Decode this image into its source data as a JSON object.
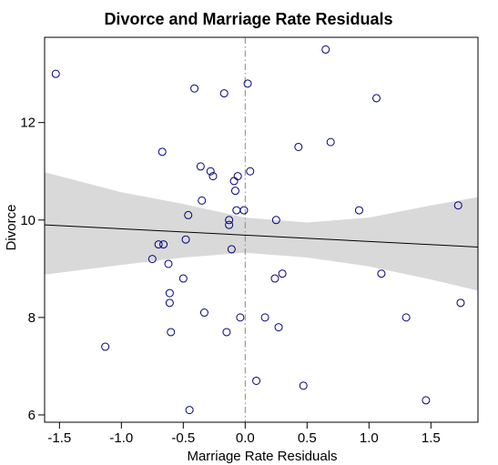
{
  "chart_data": {
    "type": "scatter",
    "title": "Divorce and Marriage Rate Residuals",
    "xlabel": "Marriage Rate Residuals",
    "ylabel": "Divorce",
    "xlim": [
      -1.62,
      1.88
    ],
    "ylim": [
      5.85,
      13.75
    ],
    "x_ticks": [
      -1.5,
      -1.0,
      -0.5,
      0.0,
      0.5,
      1.0,
      1.5
    ],
    "x_tick_labels": [
      "-1.5",
      "-1.0",
      "-0.5",
      "0.0",
      "0.5",
      "1.0",
      "1.5"
    ],
    "y_ticks": [
      6,
      8,
      10,
      12
    ],
    "y_tick_labels": [
      "6",
      "8",
      "10",
      "12"
    ],
    "grid": false,
    "reference_line": {
      "x": 0,
      "style": "dash-dot"
    },
    "regression_line": {
      "intercept": 9.69,
      "slope": -0.13
    },
    "confidence_band": {
      "x": [
        -1.62,
        -1.0,
        -0.5,
        0.0,
        0.5,
        1.0,
        1.5,
        1.88
      ],
      "lower": [
        8.88,
        9.08,
        9.23,
        9.33,
        9.23,
        9.05,
        8.78,
        8.55
      ],
      "upper": [
        10.98,
        10.57,
        10.33,
        10.05,
        9.95,
        10.05,
        10.3,
        10.47
      ]
    },
    "points": [
      {
        "x": -1.53,
        "y": 13.0
      },
      {
        "x": -1.13,
        "y": 7.4
      },
      {
        "x": -0.75,
        "y": 9.2
      },
      {
        "x": -0.7,
        "y": 9.5
      },
      {
        "x": -0.67,
        "y": 11.4
      },
      {
        "x": -0.66,
        "y": 9.5
      },
      {
        "x": -0.62,
        "y": 9.1
      },
      {
        "x": -0.61,
        "y": 8.5
      },
      {
        "x": -0.61,
        "y": 8.3
      },
      {
        "x": -0.6,
        "y": 7.7
      },
      {
        "x": -0.5,
        "y": 8.8
      },
      {
        "x": -0.48,
        "y": 9.6
      },
      {
        "x": -0.46,
        "y": 10.1
      },
      {
        "x": -0.45,
        "y": 6.1
      },
      {
        "x": -0.41,
        "y": 12.7
      },
      {
        "x": -0.36,
        "y": 11.1
      },
      {
        "x": -0.35,
        "y": 10.4
      },
      {
        "x": -0.33,
        "y": 8.1
      },
      {
        "x": -0.28,
        "y": 11.0
      },
      {
        "x": -0.26,
        "y": 10.9
      },
      {
        "x": -0.17,
        "y": 12.6
      },
      {
        "x": -0.15,
        "y": 7.7
      },
      {
        "x": -0.13,
        "y": 10.0
      },
      {
        "x": -0.13,
        "y": 9.9
      },
      {
        "x": -0.11,
        "y": 9.4
      },
      {
        "x": -0.09,
        "y": 10.8
      },
      {
        "x": -0.08,
        "y": 10.6
      },
      {
        "x": -0.07,
        "y": 10.2
      },
      {
        "x": -0.06,
        "y": 10.9
      },
      {
        "x": -0.04,
        "y": 8.0
      },
      {
        "x": -0.01,
        "y": 10.2
      },
      {
        "x": 0.02,
        "y": 12.8
      },
      {
        "x": 0.04,
        "y": 11.0
      },
      {
        "x": 0.09,
        "y": 6.7
      },
      {
        "x": 0.16,
        "y": 8.0
      },
      {
        "x": 0.24,
        "y": 8.8
      },
      {
        "x": 0.25,
        "y": 10.0
      },
      {
        "x": 0.27,
        "y": 7.8
      },
      {
        "x": 0.3,
        "y": 8.9
      },
      {
        "x": 0.43,
        "y": 11.5
      },
      {
        "x": 0.47,
        "y": 6.6
      },
      {
        "x": 0.65,
        "y": 13.5
      },
      {
        "x": 0.69,
        "y": 11.6
      },
      {
        "x": 0.92,
        "y": 10.2
      },
      {
        "x": 1.06,
        "y": 12.5
      },
      {
        "x": 1.1,
        "y": 8.9
      },
      {
        "x": 1.3,
        "y": 8.0
      },
      {
        "x": 1.46,
        "y": 6.3
      },
      {
        "x": 1.72,
        "y": 10.3
      },
      {
        "x": 1.74,
        "y": 8.3
      }
    ]
  }
}
